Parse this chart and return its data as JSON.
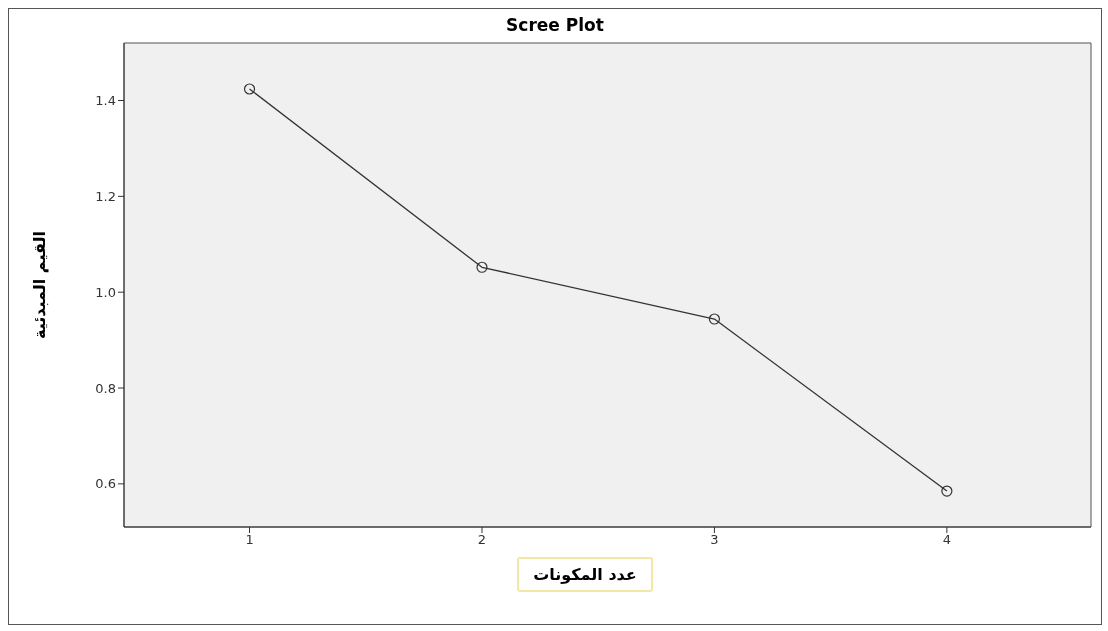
{
  "chart_data": {
    "type": "line",
    "title": "Scree Plot",
    "xlabel": "عدد المكونات",
    "ylabel": "القيم المبدئية",
    "x": [
      1,
      2,
      3,
      4
    ],
    "series": [
      {
        "color": "#333333",
        "values": [
          1.424,
          1.052,
          0.944,
          0.585
        ]
      }
    ],
    "xlim": [
      0.46,
      4.62
    ],
    "xticks": [
      1,
      2,
      3,
      4
    ],
    "ylim": [
      0.51,
      1.52
    ],
    "yticks": [
      0.6,
      0.8,
      {
        "value": 1,
        "label": "1.0"
      },
      1.2,
      1.4
    ],
    "marker": "circle",
    "line_style": "solid"
  }
}
